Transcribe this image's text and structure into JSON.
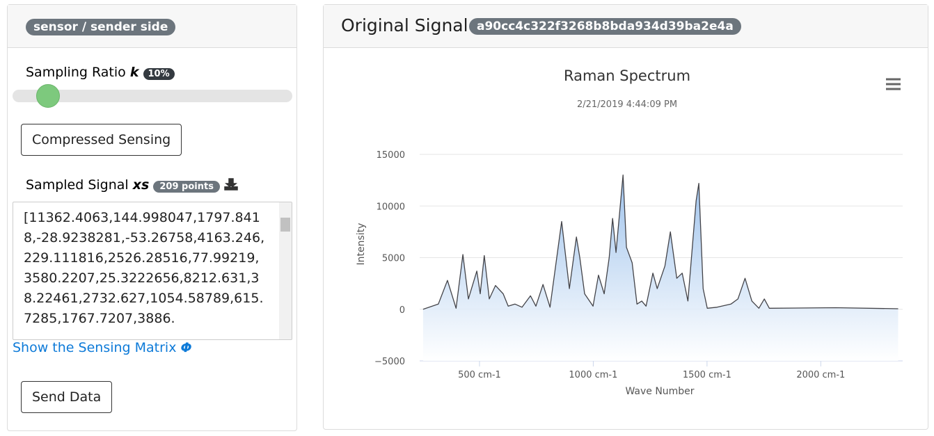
{
  "left_panel": {
    "badge": "sensor / sender side",
    "sampling_label": "Sampling Ratio",
    "sampling_symbol": "k",
    "sampling_badge": "10%",
    "compress_button": "Compressed Sensing",
    "sampled_label": "Sampled Signal",
    "sampled_symbol": "xs",
    "sampled_badge": "209 points",
    "sampled_text": "[11362.4063,144.998047,1797.8418,-28.9238281,-53.26758,4163.246,229.111816,2526.28516,77.99219,3580.2207,25.3222656,8212.631,38.22461,2732.627,1054.58789,615.7285,1767.7207,3886.",
    "matrix_link": "Show the Sensing Matrix",
    "matrix_symbol": "Φ",
    "send_button": "Send Data"
  },
  "right_panel": {
    "title": "Original Signal",
    "hash_badge": "a90cc4c322f3268b8bda934d39ba2e4a"
  },
  "chart_data": {
    "type": "area",
    "title": "Raman Spectrum",
    "subtitle": "2/21/2019 4:44:09 PM",
    "x_label": "Wave Number",
    "y_label": "Intensity",
    "color": "#7cb5ec",
    "line_color": "#434348",
    "x": [
      252,
      319,
      359,
      397,
      427,
      451,
      488,
      503,
      521,
      543,
      570,
      604,
      626,
      656,
      687,
      724,
      748,
      779,
      810,
      861,
      895,
      926,
      941,
      962,
      999,
      1023,
      1048,
      1070,
      1085,
      1100,
      1131,
      1146,
      1171,
      1192,
      1213,
      1232,
      1262,
      1281,
      1315,
      1339,
      1367,
      1391,
      1416,
      1452,
      1464,
      1483,
      1501,
      1544,
      1605,
      1636,
      1667,
      1697,
      1728,
      1752,
      1774,
      2065,
      2340
    ],
    "values": [
      0,
      500,
      2800,
      100,
      5300,
      1000,
      3700,
      1500,
      5200,
      1000,
      2300,
      1500,
      300,
      500,
      200,
      1300,
      300,
      2400,
      200,
      8500,
      2000,
      7000,
      5000,
      1500,
      300,
      3300,
      1500,
      5000,
      8800,
      5500,
      13000,
      6000,
      4500,
      500,
      800,
      300,
      3500,
      2000,
      4200,
      7500,
      3000,
      3500,
      800,
      10500,
      12200,
      2000,
      100,
      200,
      500,
      1000,
      3000,
      800,
      100,
      1000,
      100,
      150,
      50
    ],
    "xlim": [
      237,
      2360
    ],
    "xticks": [
      {
        "value": 500,
        "label": "500 cm-1"
      },
      {
        "value": 1000,
        "label": "1000 cm-1"
      },
      {
        "value": 1500,
        "label": "1500 cm-1"
      },
      {
        "value": 2000,
        "label": "2000 cm-1"
      }
    ],
    "ylim": [
      -5000,
      15000
    ],
    "yticks": [
      {
        "value": -5000,
        "label": "−5000"
      },
      0,
      5000,
      10000,
      15000
    ],
    "grid": true
  }
}
